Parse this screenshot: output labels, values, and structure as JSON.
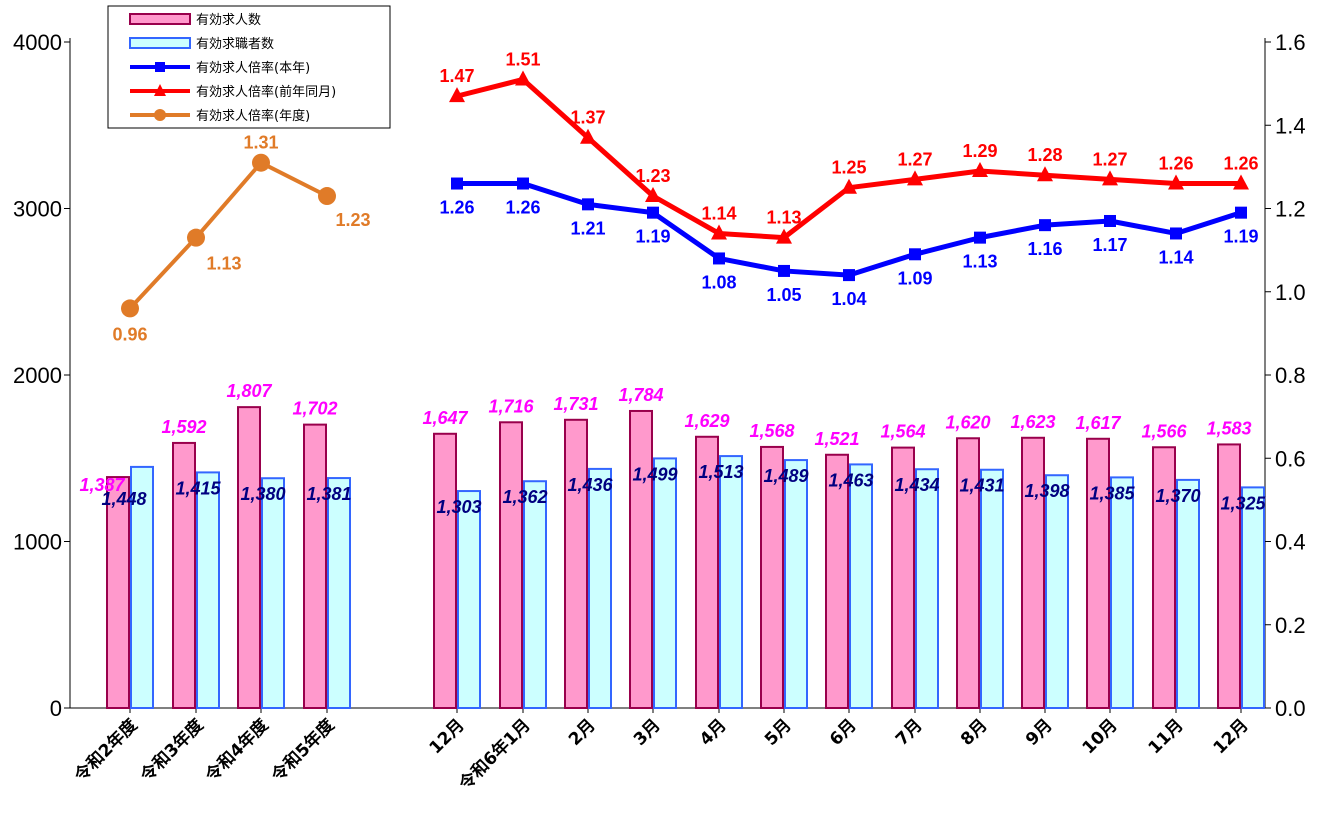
{
  "chart_data": {
    "type": "bar",
    "categories": [
      "令和2年度",
      "令和3年度",
      "令和4年度",
      "令和5年度",
      "12月",
      "令和6年1月",
      "2月",
      "3月",
      "4月",
      "5月",
      "6月",
      "7月",
      "8月",
      "9月",
      "10月",
      "11月",
      "12月"
    ],
    "y_left_ticks": [
      "0",
      "1000",
      "2000",
      "3000",
      "4000"
    ],
    "y_right_ticks": [
      "0.0",
      "0.2",
      "0.4",
      "0.6",
      "0.8",
      "1.0",
      "1.2",
      "1.4",
      "1.6"
    ],
    "ylim_left": [
      0,
      4000
    ],
    "ylim_right": [
      0,
      1.6
    ],
    "legend_position": "top-left",
    "grid": false,
    "bar_series": [
      {
        "name": "有効求人数",
        "color": "#ff99cc",
        "stroke": "#99004c",
        "label_color": "#ff00ff",
        "values": [
          1387,
          1592,
          1807,
          1702,
          1647,
          1716,
          1731,
          1784,
          1629,
          1568,
          1521,
          1564,
          1620,
          1623,
          1617,
          1566,
          1583
        ],
        "labels": [
          "1,387",
          "1,592",
          "1,807",
          "1,702",
          "1,647",
          "1,716",
          "1,731",
          "1,784",
          "1,629",
          "1,568",
          "1,521",
          "1,564",
          "1,620",
          "1,623",
          "1,617",
          "1,566",
          "1,583"
        ]
      },
      {
        "name": "有効求職者数",
        "color": "#ccffff",
        "stroke": "#3366ff",
        "label_color": "#000080",
        "values": [
          1448,
          1415,
          1380,
          1381,
          1303,
          1362,
          1436,
          1499,
          1513,
          1489,
          1463,
          1434,
          1431,
          1398,
          1385,
          1370,
          1325
        ],
        "labels": [
          "1,448",
          "1,415",
          "1,380",
          "1,381",
          "1,303",
          "1,362",
          "1,436",
          "1,499",
          "1,513",
          "1,489",
          "1,463",
          "1,434",
          "1,431",
          "1,398",
          "1,385",
          "1,370",
          "1,325"
        ]
      }
    ],
    "line_series": [
      {
        "name": "有効求人倍率(本年)",
        "color": "#0000ff",
        "marker": "square",
        "start_index": 4,
        "values": [
          1.26,
          1.26,
          1.21,
          1.19,
          1.08,
          1.05,
          1.04,
          1.09,
          1.13,
          1.16,
          1.17,
          1.14,
          1.19
        ],
        "labels": [
          "1.26",
          "1.26",
          "1.21",
          "1.19",
          "1.08",
          "1.05",
          "1.04",
          "1.09",
          "1.13",
          "1.16",
          "1.17",
          "1.14",
          "1.19"
        ]
      },
      {
        "name": "有効求人倍率(前年同月)",
        "color": "#ff0000",
        "marker": "triangle",
        "start_index": 4,
        "values": [
          1.47,
          1.51,
          1.37,
          1.23,
          1.14,
          1.13,
          1.25,
          1.27,
          1.29,
          1.28,
          1.27,
          1.26,
          1.26
        ],
        "labels": [
          "1.47",
          "1.51",
          "1.37",
          "1.23",
          "1.14",
          "1.13",
          "1.25",
          "1.27",
          "1.29",
          "1.28",
          "1.27",
          "1.26",
          "1.26"
        ]
      },
      {
        "name": "有効求人倍率(年度)",
        "color": "#e07b28",
        "marker": "circle",
        "start_index": 0,
        "values": [
          0.96,
          1.13,
          1.31,
          1.23
        ],
        "labels": [
          "0.96",
          "1.13",
          "1.31",
          "1.23"
        ]
      }
    ]
  }
}
